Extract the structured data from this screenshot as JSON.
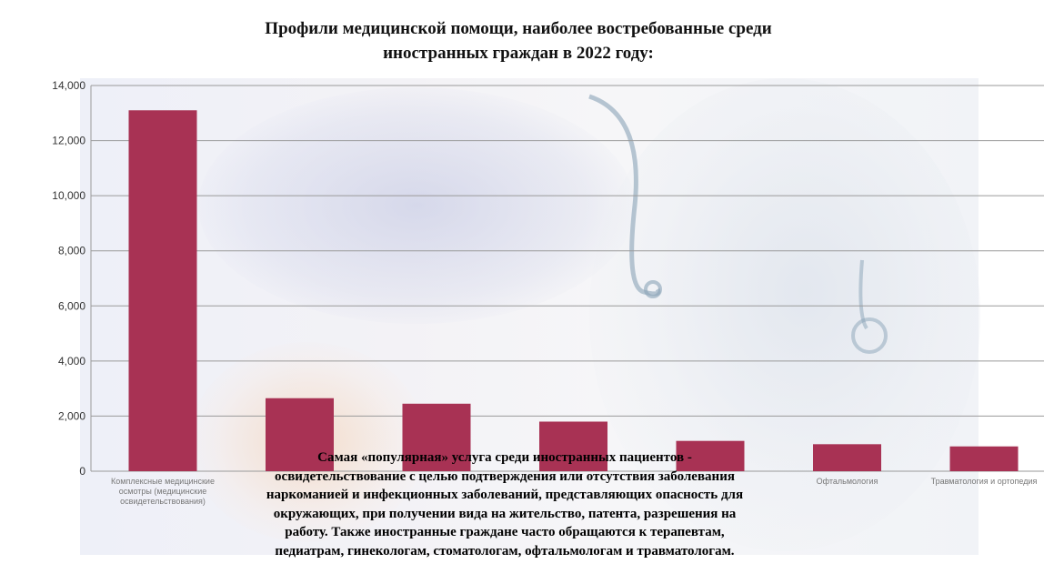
{
  "title_line1": "Профили медицинской помощи, наиболее востребованные среди",
  "title_line2": "иностранных граждан в 2022 году:",
  "note_lines": [
    "Самая «популярная» услуга среди иностранных пациентов -",
    "освидетельствование с целью подтверждения или отсутствия заболевания",
    "наркоманией и инфекционных заболеваний, представляющих опасность для",
    "окружающих, при получении вида на жительство, патента, разрешения на",
    "работу. Также иностранные граждане часто обращаются к терапевтам,",
    "педиатрам, гинекологам,  стоматологам, офтальмологам и травматологам."
  ],
  "colors": {
    "bar": "#a83254",
    "grid": "#9a9a9a"
  },
  "chart_data": {
    "type": "bar",
    "title": "Профили медицинской помощи, наиболее востребованные среди иностранных граждан в 2022 году:",
    "categories": [
      [
        "Комплексные медицинские",
        "осмотры (медицинские",
        "освидетельствования)"
      ],
      [
        ""
      ],
      [
        ""
      ],
      [
        ""
      ],
      [
        ""
      ],
      [
        "Офтальмология"
      ],
      [
        "Травматология и ортопедия"
      ]
    ],
    "values": [
      13100,
      2650,
      2450,
      1800,
      1100,
      980,
      900
    ],
    "ylim": [
      0,
      14000
    ],
    "yticks": [
      "0",
      "2,000",
      "4,000",
      "6,000",
      "8,000",
      "10,000",
      "12,000",
      "14,000"
    ],
    "grid": true,
    "xlabel": "",
    "ylabel": ""
  }
}
